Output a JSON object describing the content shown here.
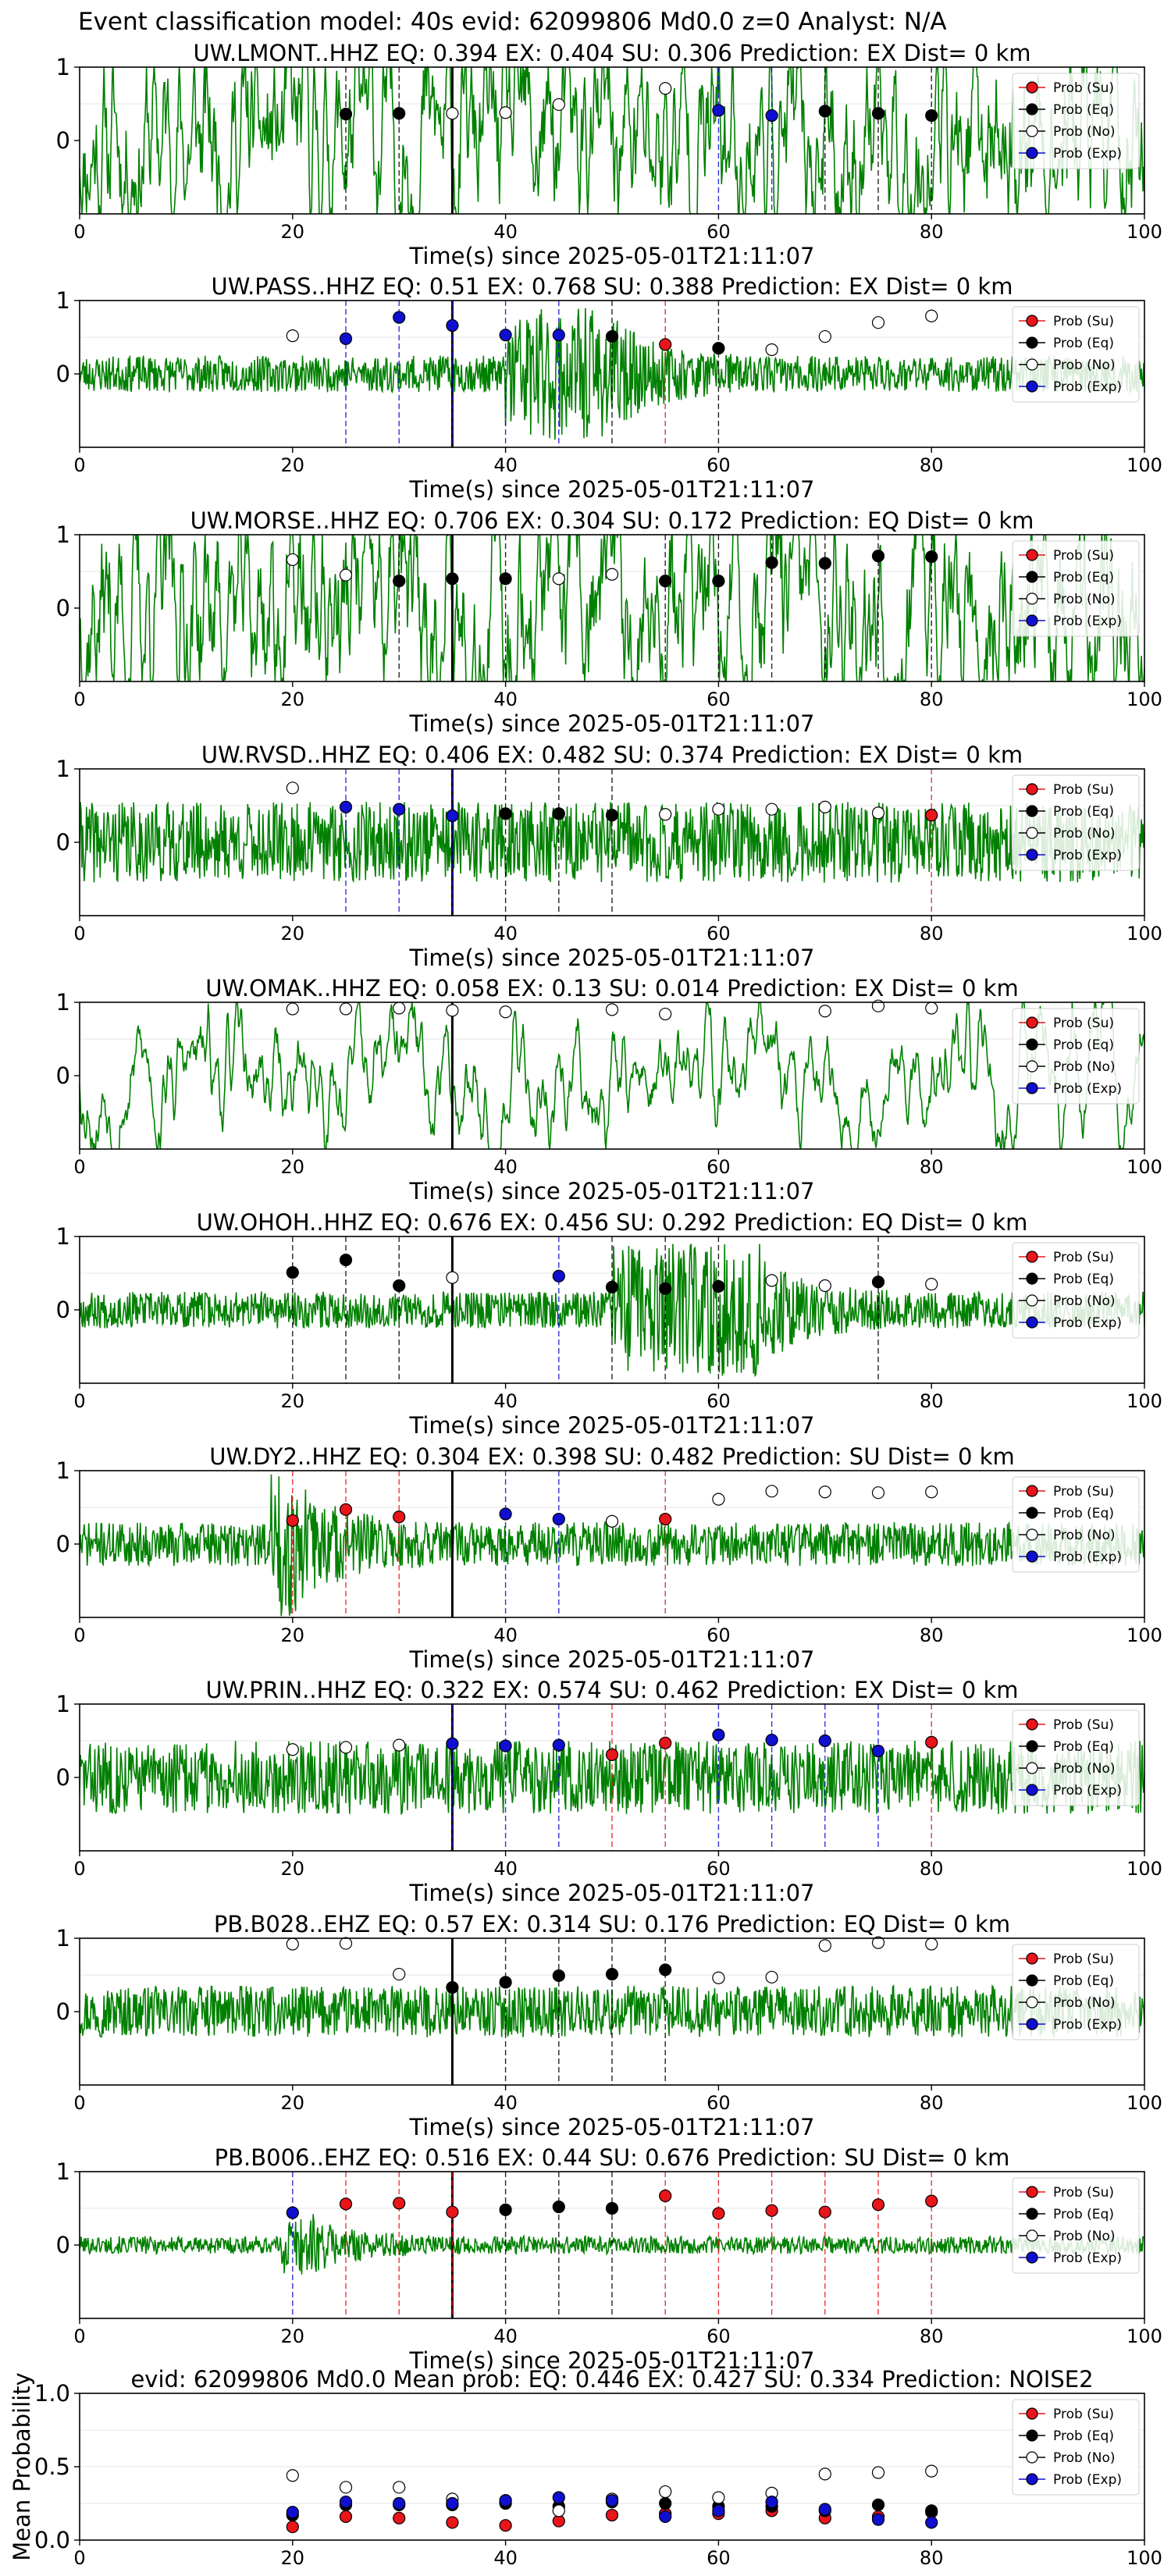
{
  "suptitle": "Event classification model: 40s evid: 62099806 Md0.0 z=0 Analyst: N/A",
  "xlabel": "Time(s) since 2025-05-01T21:11:07",
  "colors": {
    "trace": "#008000",
    "su": "#e8151b",
    "eq": "#000000",
    "no": "#ffffff",
    "exp": "#0f0fd0",
    "arrival": "#000000"
  },
  "legend": [
    "Prob (Su)",
    "Prob (Eq)",
    "Prob (No)",
    "Prob (Exp)"
  ],
  "mean_ylabel": "Mean Probability",
  "chart_data": [
    {
      "type": "line",
      "title": "UW.LMONT..HHZ   EQ: 0.394  EX: 0.404  SU: 0.306   Prediction: EX    Dist= 0 km",
      "xlim": [
        0,
        100
      ],
      "ylim": [
        -1,
        1
      ],
      "xticks": [
        0,
        20,
        40,
        60,
        80,
        100
      ],
      "yticks": [
        0,
        1
      ],
      "amplitude": 0.7,
      "arrival": 35,
      "seed": 11,
      "noise": "lowfreq",
      "points": [
        [
          25,
          0.36,
          "eq"
        ],
        [
          30,
          0.37,
          "eq"
        ],
        [
          35,
          0.37,
          "no"
        ],
        [
          40,
          0.38,
          "no"
        ],
        [
          45,
          0.49,
          "no"
        ],
        [
          55,
          0.71,
          "no"
        ],
        [
          60,
          0.41,
          "exp"
        ],
        [
          65,
          0.34,
          "exp"
        ],
        [
          70,
          0.4,
          "eq"
        ],
        [
          75,
          0.37,
          "eq"
        ],
        [
          80,
          0.34,
          "eq"
        ]
      ]
    },
    {
      "type": "line",
      "title": "UW.PASS..HHZ   EQ: 0.51  EX: 0.768  SU: 0.388   Prediction: EX    Dist= 0 km",
      "xlim": [
        0,
        100
      ],
      "ylim": [
        -1,
        1
      ],
      "xticks": [
        0,
        20,
        40,
        60,
        80,
        100
      ],
      "yticks": [
        0,
        1
      ],
      "amplitude": 0.25,
      "arrival": 35,
      "seed": 23,
      "noise": "burst",
      "burst": [
        40,
        50
      ],
      "points": [
        [
          20,
          0.52,
          "no"
        ],
        [
          25,
          0.48,
          "exp"
        ],
        [
          30,
          0.77,
          "exp"
        ],
        [
          35,
          0.66,
          "exp"
        ],
        [
          40,
          0.53,
          "exp"
        ],
        [
          45,
          0.53,
          "exp"
        ],
        [
          50,
          0.51,
          "eq"
        ],
        [
          55,
          0.4,
          "su"
        ],
        [
          60,
          0.35,
          "eq"
        ],
        [
          65,
          0.33,
          "no"
        ],
        [
          70,
          0.51,
          "no"
        ],
        [
          75,
          0.7,
          "no"
        ],
        [
          80,
          0.79,
          "no"
        ]
      ]
    },
    {
      "type": "line",
      "title": "UW.MORSE..HHZ   EQ: 0.706  EX: 0.304  SU: 0.172   Prediction: EQ    Dist= 0 km",
      "xlim": [
        0,
        100
      ],
      "ylim": [
        -1,
        1
      ],
      "xticks": [
        0,
        20,
        40,
        60,
        80,
        100
      ],
      "yticks": [
        0,
        1
      ],
      "amplitude": 0.75,
      "arrival": 35,
      "seed": 37,
      "noise": "lowfreq",
      "points": [
        [
          20,
          0.66,
          "no"
        ],
        [
          25,
          0.45,
          "no"
        ],
        [
          30,
          0.37,
          "eq"
        ],
        [
          35,
          0.4,
          "eq"
        ],
        [
          40,
          0.4,
          "eq"
        ],
        [
          45,
          0.4,
          "no"
        ],
        [
          50,
          0.46,
          "no"
        ],
        [
          55,
          0.37,
          "eq"
        ],
        [
          60,
          0.37,
          "eq"
        ],
        [
          65,
          0.62,
          "eq"
        ],
        [
          70,
          0.61,
          "eq"
        ],
        [
          75,
          0.71,
          "eq"
        ],
        [
          80,
          0.7,
          "eq"
        ]
      ]
    },
    {
      "type": "line",
      "title": "UW.RVSD..HHZ   EQ: 0.406  EX: 0.482  SU: 0.374   Prediction: EX    Dist= 0 km",
      "xlim": [
        0,
        100
      ],
      "ylim": [
        -1,
        1
      ],
      "xticks": [
        0,
        20,
        40,
        60,
        80,
        100
      ],
      "yticks": [
        0,
        1
      ],
      "amplitude": 0.55,
      "arrival": 35,
      "seed": 41,
      "noise": "hf",
      "points": [
        [
          20,
          0.74,
          "no"
        ],
        [
          25,
          0.48,
          "exp"
        ],
        [
          30,
          0.45,
          "exp"
        ],
        [
          35,
          0.36,
          "exp"
        ],
        [
          40,
          0.39,
          "eq"
        ],
        [
          45,
          0.39,
          "eq"
        ],
        [
          50,
          0.37,
          "eq"
        ],
        [
          55,
          0.38,
          "no"
        ],
        [
          60,
          0.45,
          "no"
        ],
        [
          65,
          0.45,
          "no"
        ],
        [
          70,
          0.48,
          "no"
        ],
        [
          75,
          0.4,
          "no"
        ],
        [
          80,
          0.37,
          "su"
        ]
      ]
    },
    {
      "type": "line",
      "title": "UW.OMAK..HHZ   EQ: 0.058  EX: 0.13  SU: 0.014   Prediction: EX    Dist= 0 km",
      "xlim": [
        0,
        100
      ],
      "ylim": [
        -1,
        1
      ],
      "xticks": [
        0,
        20,
        40,
        60,
        80,
        100
      ],
      "yticks": [
        0,
        1
      ],
      "amplitude": 0.7,
      "arrival": 35,
      "seed": 53,
      "noise": "smooth",
      "points": [
        [
          20,
          0.91,
          "no"
        ],
        [
          25,
          0.91,
          "no"
        ],
        [
          30,
          0.92,
          "no"
        ],
        [
          35,
          0.89,
          "no"
        ],
        [
          40,
          0.87,
          "no"
        ],
        [
          50,
          0.9,
          "no"
        ],
        [
          55,
          0.84,
          "no"
        ],
        [
          70,
          0.88,
          "no"
        ],
        [
          75,
          0.95,
          "no"
        ],
        [
          80,
          0.92,
          "no"
        ]
      ]
    },
    {
      "type": "line",
      "title": "UW.OHOH..HHZ   EQ: 0.676  EX: 0.456  SU: 0.292   Prediction: EQ    Dist= 0 km",
      "xlim": [
        0,
        100
      ],
      "ylim": [
        -1,
        1
      ],
      "xticks": [
        0,
        20,
        40,
        60,
        80,
        100
      ],
      "yticks": [
        0,
        1
      ],
      "amplitude": 0.25,
      "arrival": 35,
      "seed": 67,
      "noise": "burst",
      "burst": [
        50,
        64
      ],
      "points": [
        [
          20,
          0.51,
          "eq"
        ],
        [
          25,
          0.68,
          "eq"
        ],
        [
          30,
          0.33,
          "eq"
        ],
        [
          35,
          0.44,
          "no"
        ],
        [
          45,
          0.46,
          "exp"
        ],
        [
          50,
          0.31,
          "eq"
        ],
        [
          55,
          0.29,
          "eq"
        ],
        [
          60,
          0.32,
          "eq"
        ],
        [
          65,
          0.4,
          "no"
        ],
        [
          70,
          0.33,
          "no"
        ],
        [
          75,
          0.38,
          "eq"
        ],
        [
          80,
          0.35,
          "no"
        ]
      ]
    },
    {
      "type": "line",
      "title": "UW.DY2..HHZ   EQ: 0.304  EX: 0.398  SU: 0.482   Prediction: SU    Dist= 0 km",
      "xlim": [
        0,
        100
      ],
      "ylim": [
        -1,
        1
      ],
      "xticks": [
        0,
        20,
        40,
        60,
        80,
        100
      ],
      "yticks": [
        0,
        1
      ],
      "amplitude": 0.3,
      "arrival": 35,
      "seed": 71,
      "noise": "burst",
      "burst": [
        18,
        20
      ],
      "points": [
        [
          20,
          0.32,
          "su"
        ],
        [
          25,
          0.47,
          "su"
        ],
        [
          30,
          0.37,
          "su"
        ],
        [
          40,
          0.41,
          "exp"
        ],
        [
          45,
          0.34,
          "exp"
        ],
        [
          50,
          0.31,
          "no"
        ],
        [
          55,
          0.34,
          "su"
        ],
        [
          60,
          0.61,
          "no"
        ],
        [
          65,
          0.72,
          "no"
        ],
        [
          70,
          0.71,
          "no"
        ],
        [
          75,
          0.7,
          "no"
        ],
        [
          80,
          0.71,
          "no"
        ]
      ]
    },
    {
      "type": "line",
      "title": "UW.PRIN..HHZ   EQ: 0.322  EX: 0.574  SU: 0.462   Prediction: EX    Dist= 0 km",
      "xlim": [
        0,
        100
      ],
      "ylim": [
        -1,
        1
      ],
      "xticks": [
        0,
        20,
        40,
        60,
        80,
        100
      ],
      "yticks": [
        0,
        1
      ],
      "amplitude": 0.5,
      "arrival": 35,
      "seed": 83,
      "noise": "hf",
      "points": [
        [
          20,
          0.38,
          "no"
        ],
        [
          25,
          0.41,
          "no"
        ],
        [
          30,
          0.44,
          "no"
        ],
        [
          35,
          0.46,
          "exp"
        ],
        [
          40,
          0.43,
          "exp"
        ],
        [
          45,
          0.44,
          "exp"
        ],
        [
          50,
          0.31,
          "su"
        ],
        [
          55,
          0.47,
          "su"
        ],
        [
          60,
          0.58,
          "exp"
        ],
        [
          65,
          0.51,
          "exp"
        ],
        [
          70,
          0.5,
          "exp"
        ],
        [
          75,
          0.36,
          "exp"
        ],
        [
          80,
          0.48,
          "su"
        ]
      ]
    },
    {
      "type": "line",
      "title": "PB.B028..EHZ   EQ: 0.57  EX: 0.314  SU: 0.176   Prediction: EQ    Dist= 0 km",
      "xlim": [
        0,
        100
      ],
      "ylim": [
        -1,
        1
      ],
      "xticks": [
        0,
        20,
        40,
        60,
        80,
        100
      ],
      "yticks": [
        0,
        1
      ],
      "amplitude": 0.35,
      "arrival": 35,
      "seed": 97,
      "noise": "hf",
      "points": [
        [
          20,
          0.92,
          "no"
        ],
        [
          25,
          0.93,
          "no"
        ],
        [
          30,
          0.51,
          "no"
        ],
        [
          35,
          0.33,
          "eq"
        ],
        [
          40,
          0.4,
          "eq"
        ],
        [
          45,
          0.49,
          "eq"
        ],
        [
          50,
          0.51,
          "eq"
        ],
        [
          55,
          0.57,
          "eq"
        ],
        [
          60,
          0.46,
          "no"
        ],
        [
          65,
          0.47,
          "no"
        ],
        [
          70,
          0.9,
          "no"
        ],
        [
          75,
          0.94,
          "no"
        ],
        [
          80,
          0.92,
          "no"
        ]
      ]
    },
    {
      "type": "line",
      "title": "PB.B006..EHZ   EQ: 0.516  EX: 0.44  SU: 0.676   Prediction: SU    Dist= 0 km",
      "xlim": [
        0,
        100
      ],
      "ylim": [
        -1,
        1
      ],
      "xticks": [
        0,
        20,
        40,
        60,
        80,
        100
      ],
      "yticks": [
        0,
        1
      ],
      "amplitude": 0.12,
      "arrival": 35,
      "seed": 101,
      "noise": "burst",
      "burst": [
        19,
        22
      ],
      "points": [
        [
          20,
          0.44,
          "exp"
        ],
        [
          25,
          0.56,
          "su"
        ],
        [
          30,
          0.57,
          "su"
        ],
        [
          35,
          0.45,
          "su"
        ],
        [
          40,
          0.48,
          "eq"
        ],
        [
          45,
          0.52,
          "eq"
        ],
        [
          50,
          0.5,
          "eq"
        ],
        [
          55,
          0.67,
          "su"
        ],
        [
          60,
          0.43,
          "su"
        ],
        [
          65,
          0.47,
          "su"
        ],
        [
          70,
          0.45,
          "su"
        ],
        [
          75,
          0.55,
          "su"
        ],
        [
          80,
          0.6,
          "su"
        ]
      ]
    },
    {
      "type": "scatter",
      "title": "evid: 62099806  Md0.0   Mean prob:   EQ: 0.446  EX: 0.427  SU: 0.334   Prediction: NOISE2",
      "ylabel": "Mean Probability",
      "xlim": [
        0,
        100
      ],
      "ylim": [
        0,
        1
      ],
      "xticks": [
        0,
        20,
        40,
        60,
        80,
        100
      ],
      "yticks": [
        0.0,
        0.5,
        1.0
      ],
      "x": [
        20,
        25,
        30,
        35,
        40,
        45,
        50,
        55,
        60,
        65,
        70,
        75,
        80
      ],
      "series": [
        {
          "name": "Prob (Su)",
          "cls": "su",
          "values": [
            0.09,
            0.16,
            0.15,
            0.12,
            0.1,
            0.13,
            0.17,
            0.18,
            0.18,
            0.2,
            0.15,
            0.16,
            0.19
          ]
        },
        {
          "name": "Prob (Eq)",
          "cls": "eq",
          "values": [
            0.17,
            0.24,
            0.24,
            0.24,
            0.25,
            0.23,
            0.26,
            0.25,
            0.23,
            0.23,
            0.2,
            0.24,
            0.2
          ]
        },
        {
          "name": "Prob (No)",
          "cls": "no",
          "values": [
            0.44,
            0.36,
            0.36,
            0.28,
            0.27,
            0.2,
            0.28,
            0.33,
            0.29,
            0.32,
            0.45,
            0.46,
            0.47
          ]
        },
        {
          "name": "Prob (Exp)",
          "cls": "exp",
          "values": [
            0.19,
            0.26,
            0.25,
            0.25,
            0.27,
            0.29,
            0.27,
            0.16,
            0.2,
            0.26,
            0.21,
            0.14,
            0.12
          ]
        }
      ]
    }
  ]
}
